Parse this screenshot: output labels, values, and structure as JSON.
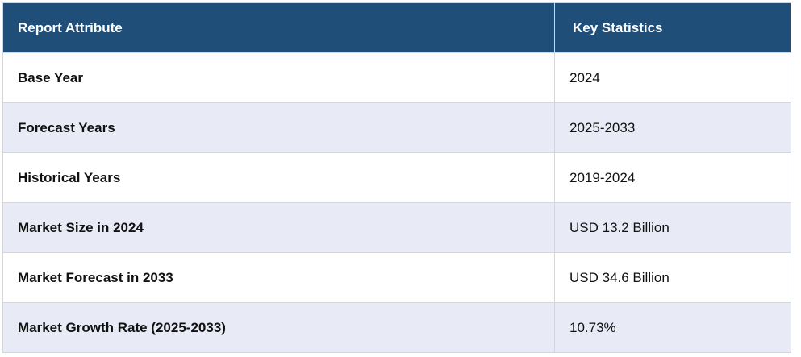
{
  "table": {
    "headers": [
      "Report Attribute",
      "Key Statistics"
    ],
    "rows": [
      {
        "attribute": "Base Year",
        "value": "2024"
      },
      {
        "attribute": "Forecast Years",
        "value": "2025-2033"
      },
      {
        "attribute": "Historical Years",
        "value": "2019-2024"
      },
      {
        "attribute": "Market Size in 2024",
        "value": "USD 13.2 Billion"
      },
      {
        "attribute": "Market Forecast in 2033",
        "value": "USD 34.6 Billion"
      },
      {
        "attribute": "Market Growth Rate (2025-2033)",
        "value": "10.73%"
      }
    ]
  },
  "colors": {
    "header_bg": "#1f4e79",
    "header_text": "#ffffff",
    "row_alt_bg": "#e8eaf6",
    "row_bg": "#ffffff",
    "border": "#d3d6dc"
  }
}
